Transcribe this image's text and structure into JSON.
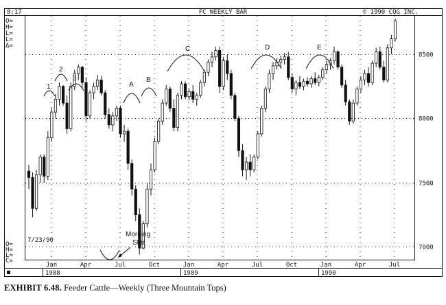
{
  "header": {
    "time": "8:17",
    "title": "FC WEEKLY BAR",
    "copyright": "© 1990 CQG INC."
  },
  "left_labels_top": [
    "O=",
    "H=",
    "L=",
    "L=",
    "Δ="
  ],
  "left_labels_bottom": [
    "O=",
    "H=",
    "L=",
    "C="
  ],
  "date_stamp": "7/23/90",
  "caption": {
    "exhibit": "EXHIBIT 6.48.",
    "text": "Feeder Cattle—Weekly (Three Mountain Tops)"
  },
  "annotations": {
    "peaks": [
      "1",
      "2",
      "3",
      "A",
      "B",
      "C",
      "D",
      "E"
    ],
    "morning_star": [
      "Morning",
      "Star"
    ]
  },
  "colors": {
    "ink": "#111111",
    "background": "#ffffff"
  },
  "chart_data": {
    "type": "candlestick",
    "title": "FC WEEKLY BAR",
    "ylim": [
      6900,
      8800
    ],
    "y_ticks": [
      7000,
      7500,
      8000,
      8500
    ],
    "x_ticks": [
      "Jan",
      "Apr",
      "Jul",
      "Oct",
      "Jan",
      "Apr",
      "Jul",
      "Oct",
      "Jan",
      "Apr",
      "Jul"
    ],
    "years": [
      "1988",
      "1989",
      "1990"
    ],
    "grid": true,
    "candles": [
      [
        7590,
        7640,
        7450,
        7540
      ],
      [
        7540,
        7580,
        7230,
        7300
      ],
      [
        7300,
        7600,
        7280,
        7560
      ],
      [
        7560,
        7720,
        7500,
        7700
      ],
      [
        7700,
        7720,
        7500,
        7550
      ],
      [
        7550,
        7900,
        7520,
        7850
      ],
      [
        7850,
        8080,
        7820,
        8050
      ],
      [
        8050,
        8190,
        8000,
        8150
      ],
      [
        8150,
        8280,
        8100,
        8250
      ],
      [
        8250,
        8260,
        8100,
        8120
      ],
      [
        8120,
        8180,
        7880,
        7920
      ],
      [
        7920,
        8280,
        7900,
        8250
      ],
      [
        8250,
        8380,
        8220,
        8350
      ],
      [
        8350,
        8420,
        8300,
        8400
      ],
      [
        8400,
        8410,
        8240,
        8280
      ],
      [
        8280,
        8320,
        7980,
        8020
      ],
      [
        8020,
        8220,
        8000,
        8200
      ],
      [
        8200,
        8280,
        8150,
        8250
      ],
      [
        8250,
        8340,
        8220,
        8300
      ],
      [
        8300,
        8330,
        8180,
        8200
      ],
      [
        8200,
        8220,
        8000,
        8030
      ],
      [
        8030,
        8080,
        7920,
        7950
      ],
      [
        7950,
        8050,
        7900,
        8020
      ],
      [
        8020,
        8100,
        7980,
        8080
      ],
      [
        8080,
        8100,
        7850,
        7880
      ],
      [
        7880,
        7950,
        7820,
        7900
      ],
      [
        7900,
        7920,
        7600,
        7650
      ],
      [
        7650,
        7680,
        7400,
        7450
      ],
      [
        7450,
        7480,
        7200,
        7250
      ],
      [
        7250,
        7300,
        6940,
        6990
      ],
      [
        6990,
        7200,
        6980,
        7180
      ],
      [
        7180,
        7500,
        7150,
        7450
      ],
      [
        7450,
        7650,
        7400,
        7600
      ],
      [
        7600,
        7850,
        7580,
        7820
      ],
      [
        7820,
        8000,
        7800,
        7980
      ],
      [
        7980,
        8150,
        7950,
        8120
      ],
      [
        8120,
        8260,
        8100,
        8230
      ],
      [
        8230,
        8250,
        8050,
        8080
      ],
      [
        8080,
        8150,
        7900,
        7930
      ],
      [
        7930,
        8200,
        7900,
        8180
      ],
      [
        8180,
        8290,
        8150,
        8270
      ],
      [
        8270,
        8290,
        8150,
        8170
      ],
      [
        8170,
        8230,
        8140,
        8210
      ],
      [
        8210,
        8260,
        8120,
        8150
      ],
      [
        8150,
        8200,
        8100,
        8180
      ],
      [
        8180,
        8300,
        8160,
        8280
      ],
      [
        8280,
        8380,
        8250,
        8360
      ],
      [
        8360,
        8460,
        8330,
        8440
      ],
      [
        8440,
        8520,
        8400,
        8480
      ],
      [
        8480,
        8560,
        8450,
        8530
      ],
      [
        8530,
        8560,
        8200,
        8250
      ],
      [
        8250,
        8480,
        8220,
        8450
      ],
      [
        8450,
        8500,
        8300,
        8350
      ],
      [
        8350,
        8380,
        8150,
        8180
      ],
      [
        8180,
        8200,
        7980,
        8000
      ],
      [
        8000,
        8020,
        7700,
        7750
      ],
      [
        7750,
        7800,
        7550,
        7600
      ],
      [
        7600,
        7700,
        7520,
        7660
      ],
      [
        7660,
        7720,
        7550,
        7600
      ],
      [
        7600,
        7720,
        7580,
        7700
      ],
      [
        7700,
        7900,
        7680,
        7880
      ],
      [
        7880,
        8100,
        7860,
        8080
      ],
      [
        8080,
        8250,
        8050,
        8230
      ],
      [
        8230,
        8380,
        8200,
        8350
      ],
      [
        8350,
        8440,
        8300,
        8410
      ],
      [
        8410,
        8470,
        8380,
        8440
      ],
      [
        8440,
        8490,
        8400,
        8460
      ],
      [
        8460,
        8510,
        8420,
        8480
      ],
      [
        8480,
        8520,
        8300,
        8320
      ],
      [
        8320,
        8350,
        8200,
        8230
      ],
      [
        8230,
        8300,
        8180,
        8280
      ],
      [
        8280,
        8330,
        8230,
        8250
      ],
      [
        8250,
        8310,
        8220,
        8290
      ],
      [
        8290,
        8320,
        8250,
        8270
      ],
      [
        8270,
        8330,
        8240,
        8310
      ],
      [
        8310,
        8360,
        8260,
        8280
      ],
      [
        8280,
        8340,
        8250,
        8320
      ],
      [
        8320,
        8400,
        8300,
        8380
      ],
      [
        8380,
        8450,
        8350,
        8420
      ],
      [
        8420,
        8470,
        8380,
        8450
      ],
      [
        8450,
        8560,
        8420,
        8520
      ],
      [
        8520,
        8530,
        8380,
        8400
      ],
      [
        8400,
        8420,
        8240,
        8260
      ],
      [
        8260,
        8300,
        8100,
        8130
      ],
      [
        8130,
        8150,
        7950,
        7980
      ],
      [
        7980,
        8150,
        7960,
        8120
      ],
      [
        8120,
        8250,
        8100,
        8230
      ],
      [
        8230,
        8330,
        8200,
        8300
      ],
      [
        8300,
        8380,
        8260,
        8350
      ],
      [
        8350,
        8400,
        8250,
        8280
      ],
      [
        8280,
        8450,
        8260,
        8430
      ],
      [
        8430,
        8550,
        8400,
        8520
      ],
      [
        8520,
        8560,
        8380,
        8400
      ],
      [
        8400,
        8450,
        8280,
        8300
      ],
      [
        8300,
        8580,
        8280,
        8550
      ],
      [
        8550,
        8650,
        8500,
        8620
      ],
      [
        8620,
        8780,
        8600,
        8760
      ]
    ]
  }
}
